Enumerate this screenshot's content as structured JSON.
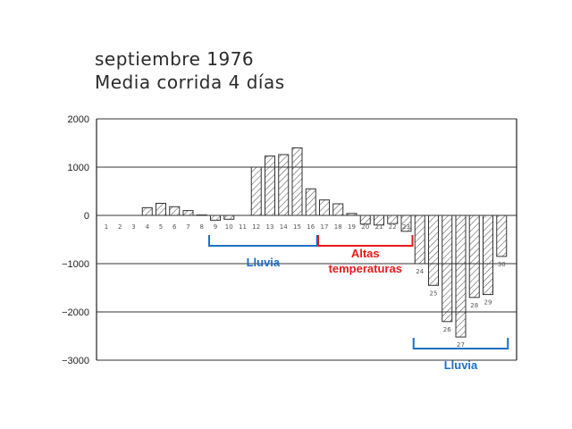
{
  "title_lines": [
    "septiembre 1976",
    "Media corrida 4 días"
  ],
  "colors": {
    "axis": "#222222",
    "grid": "#333333",
    "bar_stroke": "#333333",
    "hatch": "#444444",
    "rain_annotation": "#1f6fc2",
    "heat_annotation": "#e8191c"
  },
  "chart_data": {
    "type": "bar",
    "title": "septiembre 1976",
    "subtitle": "Media corrida 4 días",
    "xlabel": "",
    "ylabel": "",
    "ylim": [
      -3000,
      2000
    ],
    "yticks": [
      "2000",
      "1000",
      "0",
      "−1000",
      "−2000",
      "−3000"
    ],
    "grid": true,
    "categories": [
      "1",
      "2",
      "3",
      "4",
      "5",
      "6",
      "7",
      "8",
      "9",
      "10",
      "11",
      "12",
      "13",
      "14",
      "15",
      "16",
      "17",
      "18",
      "19",
      "20",
      "21",
      "22",
      "23",
      "24",
      "25",
      "26",
      "27",
      "28",
      "29",
      "30"
    ],
    "values": [
      0,
      0,
      0,
      160,
      250,
      180,
      100,
      10,
      -100,
      -80,
      0,
      1000,
      1230,
      1260,
      1400,
      550,
      320,
      240,
      40,
      -180,
      -200,
      -170,
      -330,
      -1000,
      -1450,
      -2200,
      -2520,
      -1700,
      -1640,
      -850
    ],
    "annotations": [
      {
        "label": "Lluvia",
        "from": 9,
        "to": 16,
        "color": "rain"
      },
      {
        "label": "Altas temperaturas",
        "from": 17,
        "to": 23,
        "color": "heat"
      },
      {
        "label": "Lluvia",
        "from": 24,
        "to": 30,
        "color": "rain"
      }
    ]
  }
}
